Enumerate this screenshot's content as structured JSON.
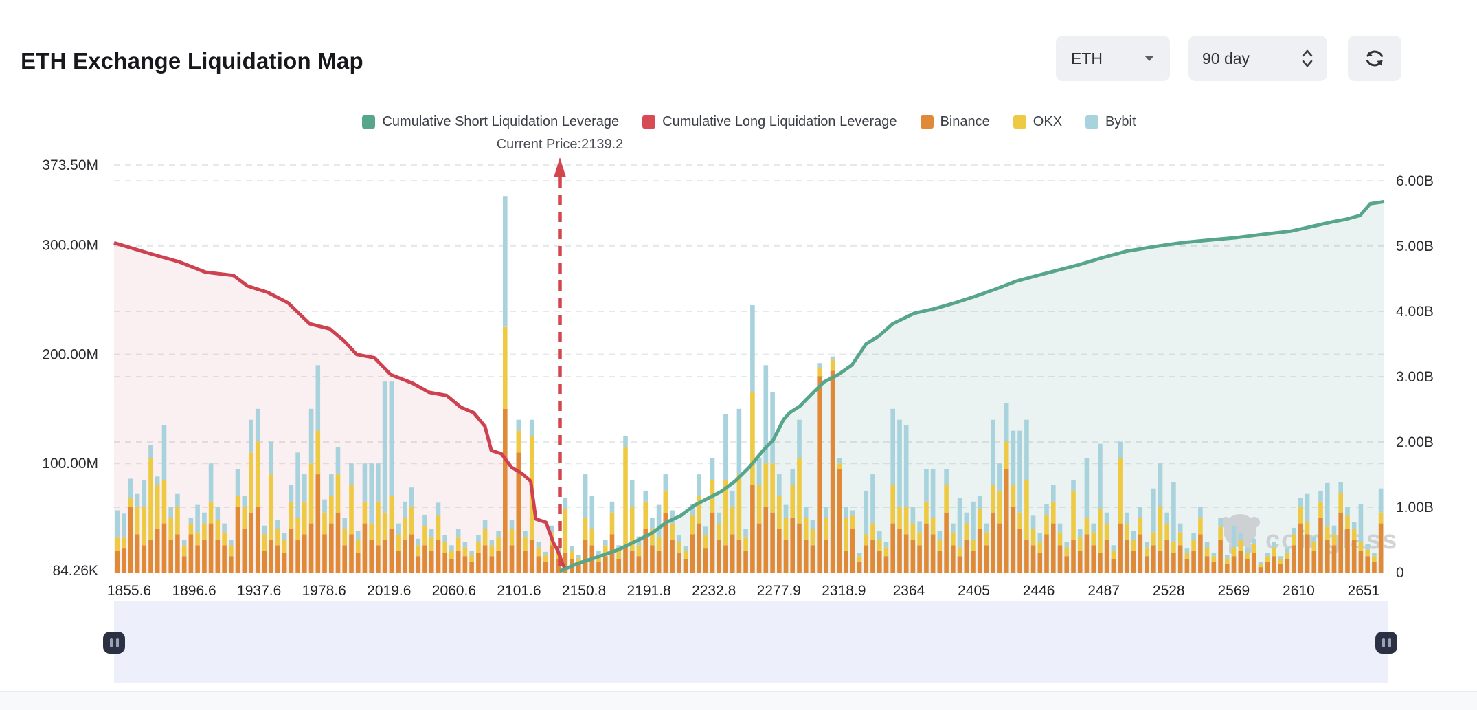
{
  "header": {
    "title": "ETH Exchange Liquidation Map",
    "coin_select": {
      "value": "ETH"
    },
    "range_select": {
      "value": "90 day"
    }
  },
  "legend": [
    {
      "label": "Cumulative Short Liquidation Leverage",
      "color": "#57a68c"
    },
    {
      "label": "Cumulative Long Liquidation Leverage",
      "color": "#d64b54"
    },
    {
      "label": "Binance",
      "color": "#e08937"
    },
    {
      "label": "OKX",
      "color": "#eec943"
    },
    {
      "label": "Bybit",
      "color": "#a8d3dc"
    }
  ],
  "annotation": {
    "current_price_label": "Current Price:2139.2",
    "current_price": 2139.2
  },
  "watermark": {
    "text": "coinglass"
  },
  "chart_data": {
    "type": "bar",
    "subtype": "stacked-bars-with-cumulative-lines",
    "title": "ETH Exchange Liquidation Map",
    "grid": true,
    "left_axis": {
      "tick_labels": [
        "373.50M",
        "300.00M",
        "200.00M",
        "100.00M",
        "84.26K"
      ],
      "tick_values_M": [
        373.5,
        300,
        200,
        100,
        0.08426
      ],
      "max_M": 373.5
    },
    "right_axis": {
      "tick_labels": [
        "6.00B",
        "5.00B",
        "4.00B",
        "3.00B",
        "2.00B",
        "1.00B",
        "0"
      ],
      "tick_values_B": [
        6,
        5,
        4,
        3,
        2,
        1,
        0
      ]
    },
    "x_axis": {
      "tick_labels": [
        "1855.6",
        "1896.6",
        "1937.6",
        "1978.6",
        "2019.6",
        "2060.6",
        "2101.6",
        "2150.8",
        "2191.8",
        "2232.8",
        "2277.9",
        "2318.9",
        "2364",
        "2405",
        "2446",
        "2487",
        "2528",
        "2569",
        "2610",
        "2651"
      ]
    },
    "current_price_fraction": 0.351,
    "bar_series_names": [
      "Binance",
      "OKX",
      "Bybit"
    ],
    "bars_unit": "M",
    "bars": [
      [
        20,
        12,
        25
      ],
      [
        22,
        10,
        22
      ],
      [
        60,
        8,
        18
      ],
      [
        35,
        25,
        12
      ],
      [
        25,
        35,
        25
      ],
      [
        30,
        75,
        12
      ],
      [
        40,
        40,
        8
      ],
      [
        45,
        40,
        50
      ],
      [
        30,
        20,
        10
      ],
      [
        35,
        25,
        12
      ],
      [
        15,
        10,
        5
      ],
      [
        35,
        10,
        5
      ],
      [
        25,
        12,
        25
      ],
      [
        30,
        15,
        10
      ],
      [
        45,
        20,
        35
      ],
      [
        30,
        18,
        12
      ],
      [
        25,
        12,
        8
      ],
      [
        15,
        10,
        5
      ],
      [
        60,
        10,
        25
      ],
      [
        40,
        20,
        10
      ],
      [
        55,
        55,
        30
      ],
      [
        60,
        60,
        30
      ],
      [
        20,
        15,
        8
      ],
      [
        30,
        60,
        30
      ],
      [
        25,
        15,
        8
      ],
      [
        18,
        12,
        6
      ],
      [
        40,
        25,
        15
      ],
      [
        30,
        20,
        60
      ],
      [
        35,
        30,
        25
      ],
      [
        45,
        55,
        50
      ],
      [
        90,
        40,
        60
      ],
      [
        35,
        20,
        12
      ],
      [
        45,
        25,
        20
      ],
      [
        55,
        35,
        25
      ],
      [
        25,
        15,
        10
      ],
      [
        35,
        45,
        20
      ],
      [
        18,
        12,
        8
      ],
      [
        45,
        20,
        35
      ],
      [
        30,
        15,
        55
      ],
      [
        25,
        40,
        35
      ],
      [
        30,
        25,
        120
      ],
      [
        40,
        30,
        105
      ],
      [
        20,
        15,
        10
      ],
      [
        30,
        20,
        15
      ],
      [
        35,
        25,
        18
      ],
      [
        15,
        10,
        6
      ],
      [
        25,
        18,
        10
      ],
      [
        20,
        12,
        8
      ],
      [
        30,
        22,
        12
      ],
      [
        18,
        10,
        6
      ],
      [
        12,
        8,
        5
      ],
      [
        20,
        12,
        8
      ],
      [
        15,
        8,
        5
      ],
      [
        10,
        6,
        4
      ],
      [
        18,
        10,
        6
      ],
      [
        25,
        15,
        8
      ],
      [
        15,
        10,
        5
      ],
      [
        20,
        12,
        6
      ],
      [
        150,
        75,
        120
      ],
      [
        25,
        15,
        8
      ],
      [
        110,
        20,
        10
      ],
      [
        20,
        12,
        6
      ],
      [
        30,
        95,
        15
      ],
      [
        15,
        8,
        5
      ],
      [
        10,
        6,
        3
      ],
      [
        25,
        12,
        6
      ],
      [
        12,
        8,
        4
      ],
      [
        18,
        40,
        10
      ],
      [
        12,
        8,
        4
      ],
      [
        8,
        5,
        3
      ],
      [
        30,
        20,
        40
      ],
      [
        25,
        15,
        30
      ],
      [
        10,
        6,
        4
      ],
      [
        15,
        10,
        5
      ],
      [
        35,
        20,
        10
      ],
      [
        12,
        8,
        5
      ],
      [
        25,
        90,
        10
      ],
      [
        20,
        40,
        25
      ],
      [
        15,
        10,
        8
      ],
      [
        40,
        25,
        10
      ],
      [
        25,
        15,
        10
      ],
      [
        20,
        12,
        30
      ],
      [
        55,
        20,
        15
      ],
      [
        30,
        15,
        12
      ],
      [
        18,
        10,
        6
      ],
      [
        12,
        8,
        4
      ],
      [
        35,
        18,
        10
      ],
      [
        45,
        25,
        20
      ],
      [
        22,
        12,
        8
      ],
      [
        55,
        30,
        20
      ],
      [
        30,
        15,
        10
      ],
      [
        25,
        60,
        60
      ],
      [
        35,
        25,
        15
      ],
      [
        30,
        60,
        60
      ],
      [
        20,
        12,
        8
      ],
      [
        80,
        85,
        80
      ],
      [
        45,
        35,
        25
      ],
      [
        60,
        40,
        90
      ],
      [
        55,
        45,
        65
      ],
      [
        40,
        30,
        20
      ],
      [
        30,
        20,
        12
      ],
      [
        50,
        30,
        15
      ],
      [
        45,
        60,
        35
      ],
      [
        30,
        20,
        10
      ],
      [
        25,
        15,
        8
      ],
      [
        180,
        8,
        4
      ],
      [
        30,
        20,
        10
      ],
      [
        185,
        10,
        3
      ],
      [
        95,
        5,
        5
      ],
      [
        20,
        30,
        10
      ],
      [
        40,
        12,
        5
      ],
      [
        10,
        5,
        3
      ],
      [
        25,
        10,
        40
      ],
      [
        30,
        15,
        45
      ],
      [
        20,
        10,
        8
      ],
      [
        15,
        8,
        5
      ],
      [
        45,
        35,
        70
      ],
      [
        40,
        20,
        80
      ],
      [
        35,
        25,
        75
      ],
      [
        30,
        15,
        15
      ],
      [
        25,
        12,
        10
      ],
      [
        45,
        20,
        30
      ],
      [
        35,
        15,
        45
      ],
      [
        20,
        10,
        8
      ],
      [
        55,
        25,
        15
      ],
      [
        25,
        12,
        8
      ],
      [
        15,
        8,
        45
      ],
      [
        30,
        15,
        10
      ],
      [
        20,
        10,
        35
      ],
      [
        40,
        18,
        12
      ],
      [
        25,
        12,
        8
      ],
      [
        55,
        25,
        60
      ],
      [
        45,
        30,
        25
      ],
      [
        95,
        25,
        35
      ],
      [
        60,
        20,
        50
      ],
      [
        40,
        15,
        75
      ],
      [
        30,
        55,
        55
      ],
      [
        25,
        15,
        12
      ],
      [
        18,
        10,
        8
      ],
      [
        35,
        18,
        10
      ],
      [
        45,
        20,
        15
      ],
      [
        25,
        12,
        8
      ],
      [
        15,
        8,
        5
      ],
      [
        30,
        45,
        10
      ],
      [
        20,
        12,
        8
      ],
      [
        35,
        15,
        55
      ],
      [
        25,
        12,
        8
      ],
      [
        18,
        40,
        60
      ],
      [
        30,
        15,
        10
      ],
      [
        12,
        8,
        5
      ],
      [
        45,
        60,
        15
      ],
      [
        30,
        15,
        10
      ],
      [
        20,
        10,
        8
      ],
      [
        35,
        15,
        10
      ],
      [
        15,
        8,
        5
      ],
      [
        25,
        12,
        40
      ],
      [
        20,
        40,
        40
      ],
      [
        30,
        15,
        10
      ],
      [
        18,
        10,
        55
      ],
      [
        25,
        12,
        8
      ],
      [
        12,
        6,
        4
      ],
      [
        20,
        10,
        6
      ],
      [
        35,
        15,
        10
      ],
      [
        15,
        8,
        5
      ],
      [
        10,
        5,
        3
      ],
      [
        30,
        12,
        8
      ],
      [
        8,
        5,
        3
      ],
      [
        15,
        8,
        20
      ],
      [
        20,
        10,
        6
      ],
      [
        12,
        6,
        4
      ],
      [
        18,
        8,
        5
      ],
      [
        5,
        3,
        2
      ],
      [
        10,
        5,
        3
      ],
      [
        15,
        8,
        5
      ],
      [
        8,
        4,
        3
      ],
      [
        12,
        6,
        4
      ],
      [
        25,
        10,
        6
      ],
      [
        45,
        15,
        8
      ],
      [
        35,
        12,
        25
      ],
      [
        20,
        8,
        5
      ],
      [
        50,
        15,
        10
      ],
      [
        30,
        12,
        40
      ],
      [
        25,
        10,
        8
      ],
      [
        55,
        18,
        10
      ],
      [
        40,
        12,
        8
      ],
      [
        30,
        10,
        6
      ],
      [
        20,
        8,
        35
      ],
      [
        15,
        6,
        5
      ],
      [
        10,
        5,
        3
      ],
      [
        45,
        10,
        22
      ]
    ],
    "lines_unit": "B",
    "long_line": {
      "name": "Cumulative Long Liquidation Leverage",
      "color": "#cd4150",
      "fill": "rgba(205,65,80,0.08)",
      "points": [
        [
          0.0,
          5.05
        ],
        [
          0.029,
          4.88
        ],
        [
          0.051,
          4.76
        ],
        [
          0.072,
          4.6
        ],
        [
          0.094,
          4.55
        ],
        [
          0.105,
          4.39
        ],
        [
          0.121,
          4.29
        ],
        [
          0.137,
          4.13
        ],
        [
          0.154,
          3.81
        ],
        [
          0.17,
          3.73
        ],
        [
          0.181,
          3.55
        ],
        [
          0.191,
          3.34
        ],
        [
          0.205,
          3.29
        ],
        [
          0.218,
          3.03
        ],
        [
          0.235,
          2.9
        ],
        [
          0.248,
          2.76
        ],
        [
          0.262,
          2.71
        ],
        [
          0.273,
          2.53
        ],
        [
          0.283,
          2.45
        ],
        [
          0.292,
          2.24
        ],
        [
          0.297,
          1.87
        ],
        [
          0.305,
          1.82
        ],
        [
          0.313,
          1.61
        ],
        [
          0.321,
          1.52
        ],
        [
          0.328,
          1.4
        ],
        [
          0.332,
          0.82
        ],
        [
          0.34,
          0.77
        ],
        [
          0.346,
          0.45
        ],
        [
          0.349,
          0.35
        ],
        [
          0.353,
          0.14
        ],
        [
          0.355,
          0.06
        ]
      ]
    },
    "short_line": {
      "name": "Cumulative Short Liquidation Leverage",
      "color": "#57a68c",
      "fill": "rgba(83,160,138,0.12)",
      "points": [
        [
          0.351,
          0.02
        ],
        [
          0.365,
          0.14
        ],
        [
          0.381,
          0.24
        ],
        [
          0.397,
          0.35
        ],
        [
          0.413,
          0.5
        ],
        [
          0.424,
          0.61
        ],
        [
          0.435,
          0.77
        ],
        [
          0.446,
          0.87
        ],
        [
          0.457,
          1.03
        ],
        [
          0.467,
          1.13
        ],
        [
          0.478,
          1.24
        ],
        [
          0.489,
          1.4
        ],
        [
          0.5,
          1.61
        ],
        [
          0.511,
          1.87
        ],
        [
          0.519,
          2.03
        ],
        [
          0.527,
          2.34
        ],
        [
          0.532,
          2.45
        ],
        [
          0.54,
          2.55
        ],
        [
          0.548,
          2.71
        ],
        [
          0.559,
          2.92
        ],
        [
          0.57,
          3.03
        ],
        [
          0.581,
          3.18
        ],
        [
          0.592,
          3.5
        ],
        [
          0.602,
          3.62
        ],
        [
          0.613,
          3.81
        ],
        [
          0.63,
          3.97
        ],
        [
          0.646,
          4.04
        ],
        [
          0.662,
          4.13
        ],
        [
          0.678,
          4.23
        ],
        [
          0.694,
          4.34
        ],
        [
          0.71,
          4.46
        ],
        [
          0.727,
          4.55
        ],
        [
          0.743,
          4.63
        ],
        [
          0.759,
          4.71
        ],
        [
          0.776,
          4.81
        ],
        [
          0.797,
          4.92
        ],
        [
          0.819,
          4.99
        ],
        [
          0.84,
          5.05
        ],
        [
          0.862,
          5.09
        ],
        [
          0.884,
          5.13
        ],
        [
          0.905,
          5.18
        ],
        [
          0.927,
          5.23
        ],
        [
          0.943,
          5.3
        ],
        [
          0.959,
          5.37
        ],
        [
          0.97,
          5.41
        ],
        [
          0.981,
          5.47
        ],
        [
          0.989,
          5.65
        ],
        [
          1.0,
          5.68
        ]
      ]
    }
  }
}
